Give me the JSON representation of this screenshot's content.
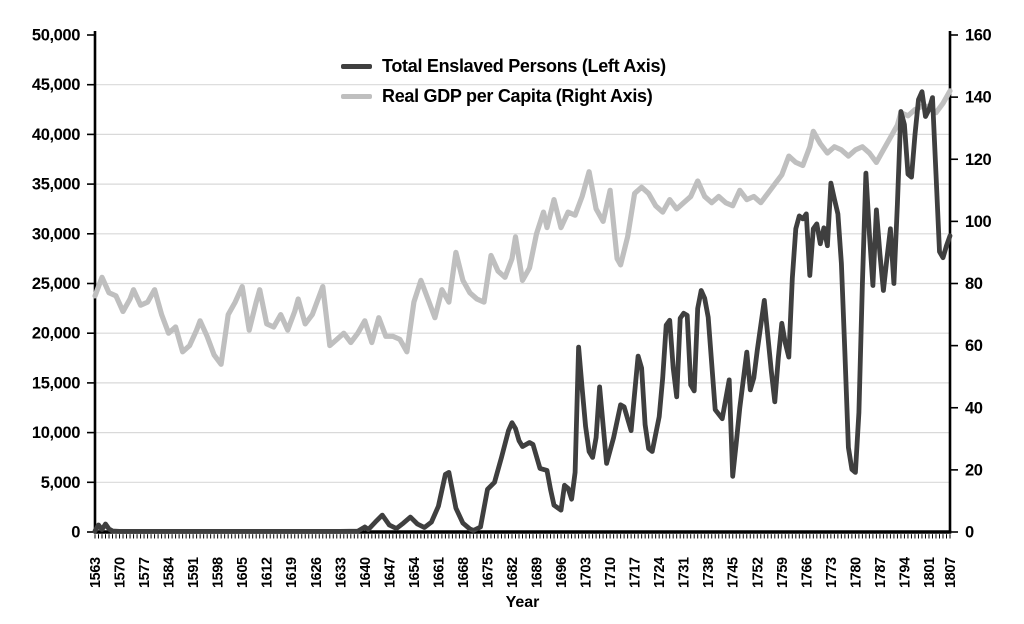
{
  "chart_data": {
    "type": "line",
    "title": "",
    "xlabel": "Year",
    "grid": "horizontal",
    "legend_position": "top-center-inside",
    "colors": {
      "dark_line": "#3f3f3f",
      "light_line": "#bfbfbf",
      "gridline": "#d9d9d9",
      "axis": "#000000",
      "background": "#ffffff"
    },
    "x_range": [
      1563,
      1807
    ],
    "x_ticks": [
      1563,
      1570,
      1577,
      1584,
      1591,
      1598,
      1605,
      1612,
      1619,
      1626,
      1633,
      1640,
      1647,
      1654,
      1661,
      1668,
      1675,
      1682,
      1689,
      1696,
      1703,
      1710,
      1717,
      1724,
      1731,
      1738,
      1745,
      1752,
      1759,
      1766,
      1773,
      1780,
      1787,
      1794,
      1801,
      1807
    ],
    "left_axis": {
      "min": 0,
      "max": 50000,
      "tick_step": 5000,
      "tick_labels": [
        "0",
        "5,000",
        "10,000",
        "15,000",
        "20,000",
        "25,000",
        "30,000",
        "35,000",
        "40,000",
        "45,000",
        "50,000"
      ]
    },
    "right_axis": {
      "min": 0,
      "max": 160,
      "tick_step": 20,
      "tick_labels": [
        "0",
        "20",
        "40",
        "60",
        "80",
        "100",
        "120",
        "140",
        "160"
      ]
    },
    "series": [
      {
        "name": "Total Enslaved Persons (Left Axis)",
        "axis": "left",
        "color": "#3f3f3f",
        "points": [
          [
            1563,
            100
          ],
          [
            1564,
            700
          ],
          [
            1565,
            250
          ],
          [
            1566,
            800
          ],
          [
            1567,
            300
          ],
          [
            1568,
            100
          ],
          [
            1570,
            60
          ],
          [
            1577,
            60
          ],
          [
            1584,
            60
          ],
          [
            1591,
            60
          ],
          [
            1598,
            60
          ],
          [
            1605,
            60
          ],
          [
            1612,
            60
          ],
          [
            1619,
            60
          ],
          [
            1626,
            60
          ],
          [
            1633,
            60
          ],
          [
            1638,
            80
          ],
          [
            1640,
            500
          ],
          [
            1641,
            250
          ],
          [
            1643,
            1000
          ],
          [
            1645,
            1700
          ],
          [
            1647,
            700
          ],
          [
            1649,
            350
          ],
          [
            1651,
            900
          ],
          [
            1653,
            1500
          ],
          [
            1655,
            800
          ],
          [
            1657,
            450
          ],
          [
            1659,
            1000
          ],
          [
            1661,
            2600
          ],
          [
            1663,
            5800
          ],
          [
            1664,
            6000
          ],
          [
            1666,
            2400
          ],
          [
            1668,
            900
          ],
          [
            1670,
            300
          ],
          [
            1671,
            150
          ],
          [
            1673,
            500
          ],
          [
            1675,
            4300
          ],
          [
            1677,
            5000
          ],
          [
            1679,
            7500
          ],
          [
            1681,
            10200
          ],
          [
            1682,
            11000
          ],
          [
            1683,
            10400
          ],
          [
            1684,
            9200
          ],
          [
            1685,
            8600
          ],
          [
            1687,
            9000
          ],
          [
            1688,
            8800
          ],
          [
            1690,
            6400
          ],
          [
            1692,
            6200
          ],
          [
            1693,
            4300
          ],
          [
            1694,
            2700
          ],
          [
            1696,
            2200
          ],
          [
            1697,
            4700
          ],
          [
            1698,
            4400
          ],
          [
            1699,
            3300
          ],
          [
            1700,
            6000
          ],
          [
            1701,
            18600
          ],
          [
            1702,
            14500
          ],
          [
            1703,
            10600
          ],
          [
            1704,
            8100
          ],
          [
            1705,
            7500
          ],
          [
            1706,
            9500
          ],
          [
            1707,
            14600
          ],
          [
            1709,
            6900
          ],
          [
            1711,
            9500
          ],
          [
            1713,
            12800
          ],
          [
            1714,
            12600
          ],
          [
            1716,
            10200
          ],
          [
            1718,
            17700
          ],
          [
            1719,
            16500
          ],
          [
            1720,
            10800
          ],
          [
            1721,
            8400
          ],
          [
            1722,
            8100
          ],
          [
            1724,
            11600
          ],
          [
            1725,
            15500
          ],
          [
            1726,
            20800
          ],
          [
            1727,
            21300
          ],
          [
            1728,
            16500
          ],
          [
            1729,
            13600
          ],
          [
            1730,
            21500
          ],
          [
            1731,
            22000
          ],
          [
            1732,
            21800
          ],
          [
            1733,
            14800
          ],
          [
            1734,
            14200
          ],
          [
            1735,
            22500
          ],
          [
            1736,
            24300
          ],
          [
            1737,
            23500
          ],
          [
            1738,
            21600
          ],
          [
            1740,
            12300
          ],
          [
            1742,
            11400
          ],
          [
            1744,
            15300
          ],
          [
            1745,
            5600
          ],
          [
            1746,
            9000
          ],
          [
            1747,
            12500
          ],
          [
            1749,
            18100
          ],
          [
            1750,
            14300
          ],
          [
            1751,
            15500
          ],
          [
            1752,
            18300
          ],
          [
            1754,
            23300
          ],
          [
            1756,
            16200
          ],
          [
            1757,
            13100
          ],
          [
            1758,
            17500
          ],
          [
            1759,
            21000
          ],
          [
            1760,
            19000
          ],
          [
            1761,
            17600
          ],
          [
            1762,
            25500
          ],
          [
            1763,
            30500
          ],
          [
            1764,
            31800
          ],
          [
            1765,
            31500
          ],
          [
            1766,
            32000
          ],
          [
            1767,
            25800
          ],
          [
            1768,
            30500
          ],
          [
            1769,
            31000
          ],
          [
            1770,
            29000
          ],
          [
            1771,
            30600
          ],
          [
            1772,
            28800
          ],
          [
            1773,
            35100
          ],
          [
            1774,
            33500
          ],
          [
            1775,
            32000
          ],
          [
            1776,
            27000
          ],
          [
            1777,
            18000
          ],
          [
            1778,
            8500
          ],
          [
            1779,
            6300
          ],
          [
            1780,
            6000
          ],
          [
            1781,
            12000
          ],
          [
            1782,
            25000
          ],
          [
            1783,
            36100
          ],
          [
            1784,
            30000
          ],
          [
            1785,
            24800
          ],
          [
            1786,
            32400
          ],
          [
            1787,
            28000
          ],
          [
            1788,
            24300
          ],
          [
            1789,
            27500
          ],
          [
            1790,
            30500
          ],
          [
            1791,
            25000
          ],
          [
            1792,
            33000
          ],
          [
            1793,
            42300
          ],
          [
            1794,
            41000
          ],
          [
            1795,
            36000
          ],
          [
            1796,
            35700
          ],
          [
            1797,
            40000
          ],
          [
            1798,
            43500
          ],
          [
            1799,
            44300
          ],
          [
            1800,
            41800
          ],
          [
            1801,
            42500
          ],
          [
            1802,
            43700
          ],
          [
            1803,
            36000
          ],
          [
            1804,
            28200
          ],
          [
            1805,
            27600
          ],
          [
            1806,
            28800
          ],
          [
            1807,
            29800
          ]
        ]
      },
      {
        "name": "Real GDP per Capita (Right Axis)",
        "axis": "right",
        "color": "#bfbfbf",
        "points": [
          [
            1563,
            76
          ],
          [
            1565,
            82
          ],
          [
            1567,
            77
          ],
          [
            1569,
            76
          ],
          [
            1571,
            71
          ],
          [
            1573,
            75
          ],
          [
            1574,
            78
          ],
          [
            1576,
            73
          ],
          [
            1578,
            74
          ],
          [
            1580,
            78
          ],
          [
            1582,
            70
          ],
          [
            1584,
            64
          ],
          [
            1586,
            66
          ],
          [
            1588,
            58
          ],
          [
            1590,
            60
          ],
          [
            1592,
            65
          ],
          [
            1593,
            68
          ],
          [
            1595,
            63
          ],
          [
            1597,
            57
          ],
          [
            1599,
            54
          ],
          [
            1601,
            70
          ],
          [
            1603,
            74
          ],
          [
            1605,
            79
          ],
          [
            1607,
            65
          ],
          [
            1609,
            74
          ],
          [
            1610,
            78
          ],
          [
            1612,
            67
          ],
          [
            1614,
            66
          ],
          [
            1616,
            70
          ],
          [
            1618,
            65
          ],
          [
            1620,
            71
          ],
          [
            1621,
            75
          ],
          [
            1623,
            67
          ],
          [
            1625,
            70
          ],
          [
            1627,
            76
          ],
          [
            1628,
            79
          ],
          [
            1630,
            60
          ],
          [
            1632,
            62
          ],
          [
            1634,
            64
          ],
          [
            1636,
            61
          ],
          [
            1638,
            64
          ],
          [
            1640,
            68
          ],
          [
            1642,
            61
          ],
          [
            1644,
            69
          ],
          [
            1646,
            63
          ],
          [
            1648,
            63
          ],
          [
            1650,
            62
          ],
          [
            1652,
            58
          ],
          [
            1654,
            74
          ],
          [
            1656,
            81
          ],
          [
            1658,
            75
          ],
          [
            1660,
            69
          ],
          [
            1662,
            78
          ],
          [
            1664,
            74
          ],
          [
            1666,
            90
          ],
          [
            1668,
            81
          ],
          [
            1670,
            77
          ],
          [
            1672,
            75
          ],
          [
            1674,
            74
          ],
          [
            1676,
            89
          ],
          [
            1678,
            84
          ],
          [
            1680,
            82
          ],
          [
            1682,
            88
          ],
          [
            1683,
            95
          ],
          [
            1685,
            81
          ],
          [
            1687,
            85
          ],
          [
            1689,
            96
          ],
          [
            1691,
            103
          ],
          [
            1692,
            98
          ],
          [
            1694,
            107
          ],
          [
            1696,
            98
          ],
          [
            1698,
            103
          ],
          [
            1700,
            102
          ],
          [
            1702,
            108
          ],
          [
            1704,
            116
          ],
          [
            1706,
            104
          ],
          [
            1708,
            100
          ],
          [
            1710,
            110
          ],
          [
            1712,
            88
          ],
          [
            1713,
            86
          ],
          [
            1715,
            95
          ],
          [
            1717,
            109
          ],
          [
            1719,
            111
          ],
          [
            1721,
            109
          ],
          [
            1723,
            105
          ],
          [
            1725,
            103
          ],
          [
            1727,
            107
          ],
          [
            1729,
            104
          ],
          [
            1731,
            106
          ],
          [
            1733,
            108
          ],
          [
            1735,
            113
          ],
          [
            1737,
            108
          ],
          [
            1739,
            106
          ],
          [
            1741,
            108
          ],
          [
            1743,
            106
          ],
          [
            1745,
            105
          ],
          [
            1747,
            110
          ],
          [
            1749,
            107
          ],
          [
            1751,
            108
          ],
          [
            1753,
            106
          ],
          [
            1755,
            109
          ],
          [
            1757,
            112
          ],
          [
            1759,
            115
          ],
          [
            1761,
            121
          ],
          [
            1763,
            119
          ],
          [
            1765,
            118
          ],
          [
            1767,
            124
          ],
          [
            1768,
            129
          ],
          [
            1770,
            125
          ],
          [
            1772,
            122
          ],
          [
            1774,
            124
          ],
          [
            1776,
            123
          ],
          [
            1778,
            121
          ],
          [
            1780,
            123
          ],
          [
            1782,
            124
          ],
          [
            1784,
            122
          ],
          [
            1786,
            119
          ],
          [
            1788,
            123
          ],
          [
            1790,
            127
          ],
          [
            1792,
            131
          ],
          [
            1793,
            135
          ],
          [
            1795,
            134
          ],
          [
            1797,
            136
          ],
          [
            1799,
            137
          ],
          [
            1801,
            137
          ],
          [
            1803,
            135
          ],
          [
            1805,
            138
          ],
          [
            1807,
            142
          ]
        ]
      }
    ]
  }
}
